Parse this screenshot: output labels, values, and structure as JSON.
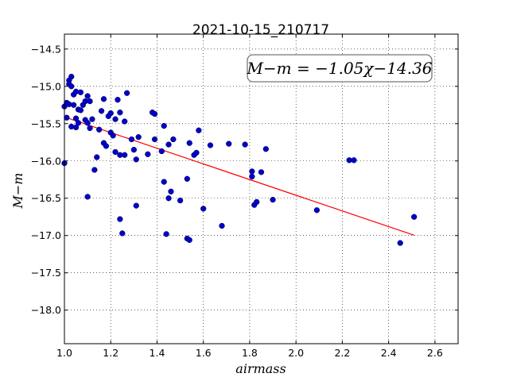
{
  "chart_data": {
    "type": "scatter",
    "title": "2021-10-15_210717",
    "xlabel": "airmass",
    "ylabel": "M−m",
    "xlim": [
      1.0,
      2.7
    ],
    "ylim": [
      -18.45,
      -14.3
    ],
    "y_inverted": true,
    "grid": true,
    "x_ticks": [
      1.0,
      1.2,
      1.4,
      1.6,
      1.8,
      2.0,
      2.2,
      2.4,
      2.6
    ],
    "x_tick_labels": [
      "1.0",
      "1.2",
      "1.4",
      "1.6",
      "1.8",
      "2.0",
      "2.2",
      "2.4",
      "2.6"
    ],
    "y_ticks": [
      -14.5,
      -15.0,
      -15.5,
      -16.0,
      -16.5,
      -17.0,
      -17.5,
      -18.0
    ],
    "y_tick_labels": [
      "−14.5",
      "−15.0",
      "−15.5",
      "−16.0",
      "−16.5",
      "−17.0",
      "−17.5",
      "−18.0"
    ],
    "annotation": "M−m = −1.05χ−14.36",
    "marker_color": "#0000cc",
    "fit_color": "#ff0000",
    "fit_line": {
      "slope": -1.05,
      "intercept": -14.36,
      "x_range": [
        1.0,
        2.51
      ]
    },
    "points": [
      [
        1.0,
        -15.27
      ],
      [
        1.0,
        -16.03
      ],
      [
        1.01,
        -15.22
      ],
      [
        1.01,
        -15.42
      ],
      [
        1.02,
        -14.92
      ],
      [
        1.02,
        -15.24
      ],
      [
        1.02,
        -14.97
      ],
      [
        1.03,
        -14.87
      ],
      [
        1.03,
        -15.0
      ],
      [
        1.03,
        -15.54
      ],
      [
        1.04,
        -15.11
      ],
      [
        1.04,
        -15.25
      ],
      [
        1.05,
        -15.07
      ],
      [
        1.05,
        -15.43
      ],
      [
        1.05,
        -15.55
      ],
      [
        1.06,
        -15.31
      ],
      [
        1.06,
        -15.49
      ],
      [
        1.07,
        -15.32
      ],
      [
        1.07,
        -15.08
      ],
      [
        1.08,
        -15.25
      ],
      [
        1.09,
        -15.45
      ],
      [
        1.09,
        -15.2
      ],
      [
        1.1,
        -15.49
      ],
      [
        1.1,
        -15.13
      ],
      [
        1.11,
        -15.56
      ],
      [
        1.11,
        -15.2
      ],
      [
        1.12,
        -15.44
      ],
      [
        1.1,
        -16.48
      ],
      [
        1.13,
        -16.12
      ],
      [
        1.14,
        -15.95
      ],
      [
        1.15,
        -15.58
      ],
      [
        1.16,
        -15.33
      ],
      [
        1.17,
        -15.17
      ],
      [
        1.17,
        -15.76
      ],
      [
        1.18,
        -15.8
      ],
      [
        1.19,
        -15.4
      ],
      [
        1.2,
        -15.36
      ],
      [
        1.2,
        -15.62
      ],
      [
        1.21,
        -15.66
      ],
      [
        1.22,
        -15.44
      ],
      [
        1.22,
        -15.88
      ],
      [
        1.23,
        -15.18
      ],
      [
        1.24,
        -15.35
      ],
      [
        1.24,
        -15.92
      ],
      [
        1.24,
        -16.78
      ],
      [
        1.25,
        -16.97
      ],
      [
        1.26,
        -15.47
      ],
      [
        1.26,
        -15.92
      ],
      [
        1.27,
        -15.09
      ],
      [
        1.29,
        -15.71
      ],
      [
        1.3,
        -15.85
      ],
      [
        1.31,
        -15.98
      ],
      [
        1.31,
        -16.6
      ],
      [
        1.32,
        -15.68
      ],
      [
        1.36,
        -15.91
      ],
      [
        1.38,
        -15.35
      ],
      [
        1.39,
        -15.37
      ],
      [
        1.39,
        -15.71
      ],
      [
        1.42,
        -15.87
      ],
      [
        1.43,
        -16.28
      ],
      [
        1.43,
        -15.53
      ],
      [
        1.44,
        -16.98
      ],
      [
        1.45,
        -16.5
      ],
      [
        1.45,
        -15.78
      ],
      [
        1.46,
        -16.41
      ],
      [
        1.47,
        -15.71
      ],
      [
        1.5,
        -16.53
      ],
      [
        1.53,
        -16.24
      ],
      [
        1.53,
        -17.04
      ],
      [
        1.54,
        -17.06
      ],
      [
        1.54,
        -15.76
      ],
      [
        1.56,
        -15.92
      ],
      [
        1.57,
        -15.89
      ],
      [
        1.58,
        -15.59
      ],
      [
        1.6,
        -16.64
      ],
      [
        1.63,
        -15.79
      ],
      [
        1.68,
        -16.87
      ],
      [
        1.71,
        -15.77
      ],
      [
        1.78,
        -15.78
      ],
      [
        1.81,
        -16.14
      ],
      [
        1.81,
        -16.21
      ],
      [
        1.82,
        -16.59
      ],
      [
        1.83,
        -16.55
      ],
      [
        1.85,
        -16.15
      ],
      [
        1.87,
        -15.84
      ],
      [
        1.9,
        -16.52
      ],
      [
        2.09,
        -16.66
      ],
      [
        2.23,
        -15.99
      ],
      [
        2.25,
        -15.99
      ],
      [
        2.45,
        -17.1
      ],
      [
        2.51,
        -16.75
      ]
    ]
  }
}
